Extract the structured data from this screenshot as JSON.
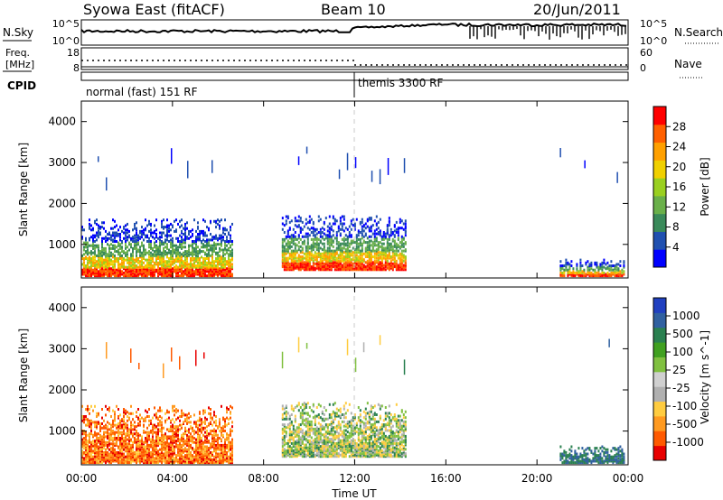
{
  "header": {
    "station": "Syowa East (fitACF)",
    "beam": "Beam 10",
    "date": "20/Jun/2011"
  },
  "nsky_panel": {
    "label": "N.Sky",
    "left_ticks": [
      "10^5",
      "10^0"
    ],
    "right_ticks": [
      "10^5",
      "10^0"
    ],
    "right_label": "N.Search"
  },
  "freq_panel": {
    "label_line1": "Freq.",
    "label_line2": "[MHz]",
    "left_ticks": [
      "18",
      "8"
    ],
    "right_ticks": [
      "60",
      "0"
    ],
    "right_label": "Nave"
  },
  "cpid_panel": {
    "label": "CPID",
    "modes": [
      "normal (fast) 151 RF",
      "themis 3300 RF"
    ]
  },
  "colors": {
    "power": [
      "#0000ff",
      "#2050b0",
      "#3a8a5a",
      "#6ab04a",
      "#9ad020",
      "#f0d000",
      "#ffa000",
      "#ff6000",
      "#ff0000"
    ],
    "velocity": [
      "#e80000",
      "#ff5a00",
      "#ff9a20",
      "#ffcc40",
      "#b0b0b0",
      "#d0d0d0",
      "#80c040",
      "#40a020",
      "#2a8050",
      "#3060a0",
      "#2040c0"
    ]
  },
  "chart_data": [
    {
      "type": "heatmap",
      "title": "Power",
      "xlabel": "",
      "ylabel": "Slant Range [km]",
      "ylim": [
        180,
        4500
      ],
      "xlim": [
        0,
        24
      ],
      "y_ticks": [
        "4000",
        "3000",
        "2000",
        "1000"
      ],
      "colorbar": {
        "label": "Power [dB]",
        "ticks": [
          "28",
          "24",
          "20",
          "16",
          "12",
          "8",
          "4"
        ],
        "range": [
          0,
          32
        ]
      },
      "echo_regions": [
        {
          "start_hr": 0.0,
          "end_hr": 6.6,
          "min_km": 200,
          "max_km": 1600,
          "level": "high"
        },
        {
          "start_hr": 8.8,
          "end_hr": 14.2,
          "min_km": 350,
          "max_km": 1650,
          "level": "medium"
        },
        {
          "start_hr": 21.0,
          "end_hr": 23.8,
          "min_km": 200,
          "max_km": 600,
          "level": "medium"
        }
      ]
    },
    {
      "type": "heatmap",
      "title": "Velocity",
      "xlabel": "Time UT",
      "ylabel": "Slant Range [km]",
      "ylim": [
        180,
        4500
      ],
      "xlim": [
        0,
        24
      ],
      "x_ticks": [
        "00:00",
        "04:00",
        "08:00",
        "12:00",
        "16:00",
        "20:00",
        "00:00"
      ],
      "y_ticks": [
        "4000",
        "3000",
        "2000",
        "1000"
      ],
      "colorbar": {
        "label": "Velocity [m s^-1]",
        "ticks": [
          "1000",
          "500",
          "100",
          "25",
          "-25",
          "-100",
          "-500",
          "-1000"
        ]
      },
      "echo_regions": [
        {
          "start_hr": 0.0,
          "end_hr": 6.6,
          "min_km": 200,
          "max_km": 1600,
          "level": "negative"
        },
        {
          "start_hr": 8.8,
          "end_hr": 14.2,
          "min_km": 350,
          "max_km": 1650,
          "level": "positive"
        },
        {
          "start_hr": 21.0,
          "end_hr": 23.8,
          "min_km": 200,
          "max_km": 600,
          "level": "positive"
        }
      ]
    }
  ]
}
